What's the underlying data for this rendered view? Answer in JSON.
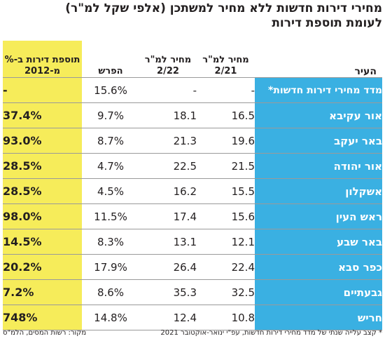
{
  "title_line1": "מחירי דירות חדשות ללא מחיר למשתכן (אלפי שקל למ\"ר)",
  "title_line2": "לעומת תוספת דירות",
  "chart_data": {
    "type": "table",
    "columns": {
      "city": "העיר",
      "price_21": "מחיר למ\"ר 2/21",
      "price_22": "מחיר למ\"ר 2/22",
      "diff": "הפרש",
      "additions": "תוספת דירות ב-% מ-2012"
    },
    "rows": [
      {
        "city": "מדד מחירי דירות חדשות*",
        "price_21": "-",
        "price_22": "-",
        "diff": "15.6%",
        "additions": "-"
      },
      {
        "city": "אור עקיבא",
        "price_21": "16.5",
        "price_22": "18.1",
        "diff": "9.7%",
        "additions": "37.4%"
      },
      {
        "city": "באר יעקב",
        "price_21": "19.6",
        "price_22": "21.3",
        "diff": "8.7%",
        "additions": "93.0%"
      },
      {
        "city": "אור יהודה",
        "price_21": "21.5",
        "price_22": "22.5",
        "diff": "4.7%",
        "additions": "28.5%"
      },
      {
        "city": "אשקלון",
        "price_21": "15.5",
        "price_22": "16.2",
        "diff": "4.5%",
        "additions": "28.5%"
      },
      {
        "city": "ראש העין",
        "price_21": "15.6",
        "price_22": "17.4",
        "diff": "11.5%",
        "additions": "98.0%"
      },
      {
        "city": "באר שבע",
        "price_21": "12.1",
        "price_22": "13.1",
        "diff": "8.3%",
        "additions": "14.5%"
      },
      {
        "city": "כפר סבא",
        "price_21": "22.4",
        "price_22": "26.4",
        "diff": "17.9%",
        "additions": "20.2%"
      },
      {
        "city": "גבעתיים",
        "price_21": "32.5",
        "price_22": "35.3",
        "diff": "8.6%",
        "additions": "7.2%"
      },
      {
        "city": "חריש",
        "price_21": "10.8",
        "price_22": "12.4",
        "diff": "14.8%",
        "additions": "748%"
      }
    ]
  },
  "footnote": "* קצב עלייה שנתי של מדד מחירי דירות חדשות, עפ\"י ינואר-אוקטובר 2021",
  "source": "מקור: רשות המסים, הלמ\"ס",
  "colors": {
    "city_column": "#3ab0e2",
    "additions_column": "#f6ec5a"
  }
}
